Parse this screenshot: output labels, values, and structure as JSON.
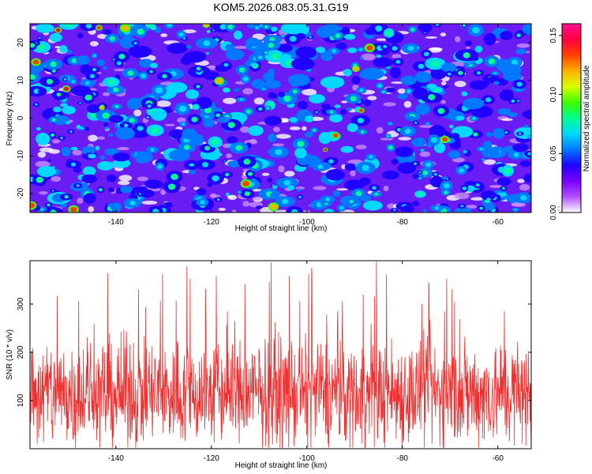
{
  "title": "KOM5.2026.083.05.31.G19",
  "colors": {
    "snr_line": "#f03030",
    "background": "#ffffff",
    "axis": "#000000"
  },
  "chart_data": [
    {
      "type": "heatmap",
      "xlabel": "Height of straight line (km)",
      "ylabel": "Frequency (Hz)",
      "xlim": [
        -158,
        -53
      ],
      "ylim": [
        -25,
        25
      ],
      "xticks": [
        -140,
        -120,
        -100,
        -80,
        -60
      ],
      "yticks": [
        -20,
        -10,
        0,
        10,
        20
      ],
      "colorbar": {
        "label": "Normalized spectral amplitude",
        "range": [
          0.0,
          0.16
        ],
        "ticks": [
          "0.00",
          "0.05",
          "0.10",
          "0.15"
        ],
        "colors": [
          "#ffffff",
          "#b050ff",
          "#7a00ff",
          "#2000ff",
          "#0078ff",
          "#00d8ff",
          "#00ff90",
          "#40ff00",
          "#d8ff00",
          "#ffb000",
          "#ff4000",
          "#ff0040",
          "#ff1090"
        ]
      },
      "description_values": "dense random field of amplitude blobs, mostly 0.01-0.06, sparse peaks up to ~0.15"
    },
    {
      "type": "line",
      "xlabel": "Height of straight line (km)",
      "ylabel": "SNR (10 * v/v)",
      "xlim": [
        -158,
        -53
      ],
      "ylim": [
        0,
        390
      ],
      "xticks": [
        -140,
        -120,
        -100,
        -80,
        -60
      ],
      "yticks": [
        100,
        200,
        300
      ],
      "series": [
        {
          "name": "SNR",
          "color": "#f03030",
          "mean": 115,
          "min": 2,
          "max": 388
        }
      ]
    }
  ]
}
